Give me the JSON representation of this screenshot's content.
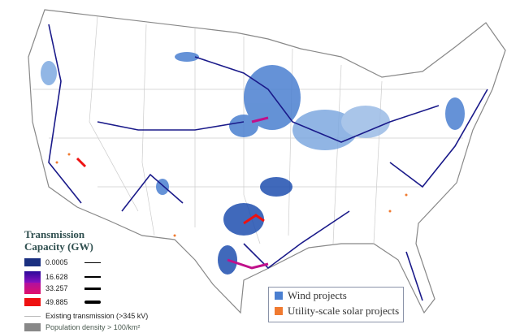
{
  "legend": {
    "title_line1": "Transmission",
    "title_line2": "Capacity (GW)",
    "items": [
      {
        "label": "0.0005",
        "color": "#1a2f80"
      },
      {
        "label": "16.628",
        "color": "#2a0a9a"
      },
      {
        "label": "33.257",
        "color": "#e0106a"
      },
      {
        "label": "49.885",
        "color": "#ee1111"
      }
    ],
    "existing_label": "Existing transmission (>345 kV)",
    "population_label": "Population density > 100/km²"
  },
  "project_legend": {
    "wind_label": "Wind projects",
    "wind_color": "#4a7fd0",
    "solar_label": "Utility-scale solar projects",
    "solar_color": "#f07a30"
  }
}
